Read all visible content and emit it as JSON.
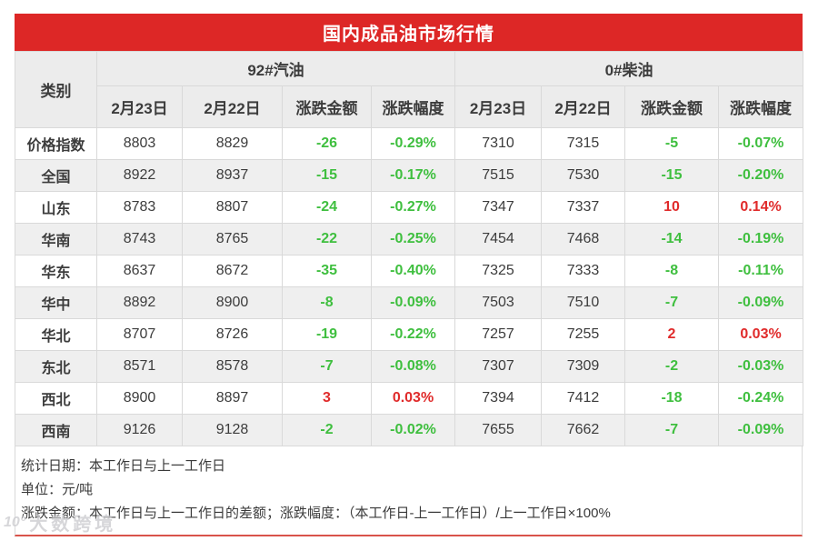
{
  "title": "国内成品油市场行情",
  "chart_data": {
    "type": "table",
    "title": "国内成品油市场行情",
    "category_header": "类别",
    "group_headers": [
      "92#汽油",
      "0#柴油"
    ],
    "sub_headers": [
      "2月23日",
      "2月22日",
      "涨跌金额",
      "涨跌幅度"
    ],
    "rows": [
      {
        "label": "价格指数",
        "gasoline": [
          "8803",
          "8829",
          "-26",
          "-0.29%"
        ],
        "diesel": [
          "7310",
          "7315",
          "-5",
          "-0.07%"
        ]
      },
      {
        "label": "全国",
        "gasoline": [
          "8922",
          "8937",
          "-15",
          "-0.17%"
        ],
        "diesel": [
          "7515",
          "7530",
          "-15",
          "-0.20%"
        ]
      },
      {
        "label": "山东",
        "gasoline": [
          "8783",
          "8807",
          "-24",
          "-0.27%"
        ],
        "diesel": [
          "7347",
          "7337",
          "10",
          "0.14%"
        ]
      },
      {
        "label": "华南",
        "gasoline": [
          "8743",
          "8765",
          "-22",
          "-0.25%"
        ],
        "diesel": [
          "7454",
          "7468",
          "-14",
          "-0.19%"
        ]
      },
      {
        "label": "华东",
        "gasoline": [
          "8637",
          "8672",
          "-35",
          "-0.40%"
        ],
        "diesel": [
          "7325",
          "7333",
          "-8",
          "-0.11%"
        ]
      },
      {
        "label": "华中",
        "gasoline": [
          "8892",
          "8900",
          "-8",
          "-0.09%"
        ],
        "diesel": [
          "7503",
          "7510",
          "-7",
          "-0.09%"
        ]
      },
      {
        "label": "华北",
        "gasoline": [
          "8707",
          "8726",
          "-19",
          "-0.22%"
        ],
        "diesel": [
          "7257",
          "7255",
          "2",
          "0.03%"
        ]
      },
      {
        "label": "东北",
        "gasoline": [
          "8571",
          "8578",
          "-7",
          "-0.08%"
        ],
        "diesel": [
          "7307",
          "7309",
          "-2",
          "-0.03%"
        ]
      },
      {
        "label": "西北",
        "gasoline": [
          "8900",
          "8897",
          "3",
          "0.03%"
        ],
        "diesel": [
          "7394",
          "7412",
          "-18",
          "-0.24%"
        ]
      },
      {
        "label": "西南",
        "gasoline": [
          "9126",
          "9128",
          "-2",
          "-0.02%"
        ],
        "diesel": [
          "7655",
          "7662",
          "-7",
          "-0.09%"
        ]
      }
    ],
    "notes": [
      "统计日期：本工作日与上一工作日",
      "单位：元/吨",
      "涨跌金额：本工作日与上一工作日的差额；涨跌幅度：（本工作日-上一工作日）/上一工作日×100%"
    ]
  },
  "watermark": {
    "logo": "10°",
    "text": "大数跨境"
  },
  "colors": {
    "accent_red": "#dd2726",
    "up_red": "#e02b2b",
    "down_green": "#3fbf3f",
    "header_gray": "#ececec",
    "alt_row_gray": "#efefef",
    "border_gray": "#d9d9d9",
    "bottom_line_red": "#d9534a"
  }
}
